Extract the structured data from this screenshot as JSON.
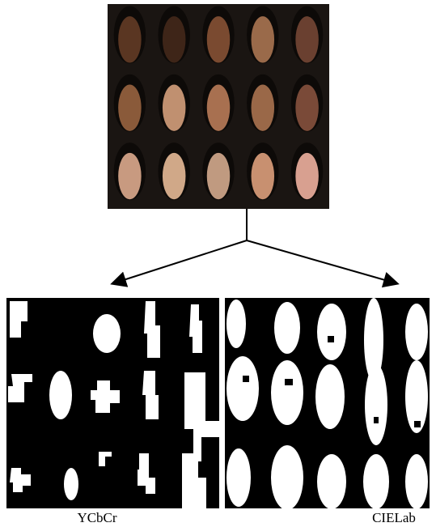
{
  "labels": {
    "left": "YCbCr",
    "right": "CIELab"
  }
}
